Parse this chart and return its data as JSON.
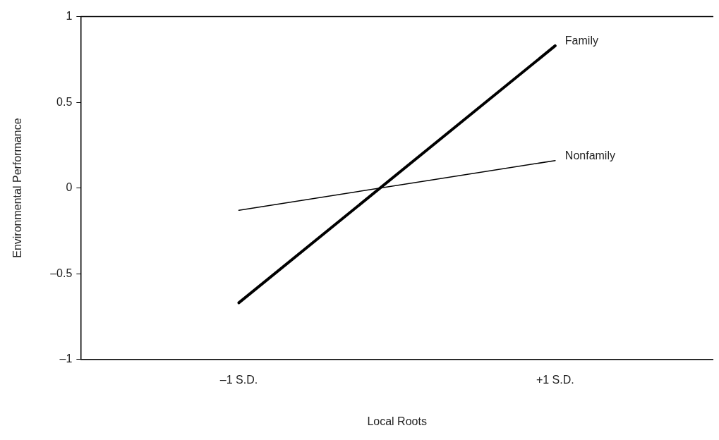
{
  "chart_data": {
    "type": "line",
    "xlabel": "Local Roots",
    "ylabel": "Environmental Performance",
    "xlim": [
      -2,
      2
    ],
    "xticks": [
      {
        "value": -1,
        "label": "–1 S.D."
      },
      {
        "value": 1,
        "label": "+1 S.D."
      }
    ],
    "ylim": [
      -1,
      1
    ],
    "yticks": [
      {
        "value": -1,
        "label": "–1"
      },
      {
        "value": -0.5,
        "label": "–0.5"
      },
      0,
      0.5,
      1
    ],
    "x": [
      -1,
      1
    ],
    "series": [
      {
        "name": "Family",
        "color": "#000000",
        "values": [
          -0.67,
          0.83
        ]
      },
      {
        "name": "Nonfamily",
        "color": "#000000",
        "values": [
          -0.13,
          0.16
        ]
      }
    ],
    "grid": false,
    "legend": false,
    "marker": "none",
    "line_style": "solid"
  }
}
